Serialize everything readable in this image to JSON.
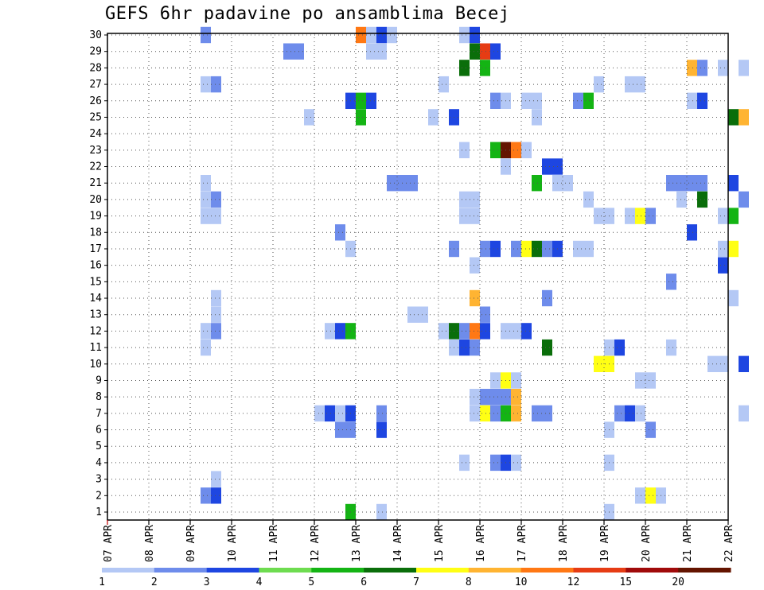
{
  "chart_data": {
    "type": "heatmap",
    "title": "GEFS 6hr padavine po ansamblima Becej",
    "xlabel": "",
    "ylabel": "",
    "x_ticks": [
      "07 APR",
      "08 APR",
      "09 APR",
      "10 APR",
      "11 APR",
      "12 APR",
      "13 APR",
      "14 APR",
      "15 APR",
      "16 APR",
      "17 APR",
      "18 APR",
      "19 APR",
      "20 APR",
      "21 APR",
      "22 APR"
    ],
    "y_ticks": [
      "1",
      "2",
      "3",
      "4",
      "5",
      "6",
      "7",
      "8",
      "9",
      "10",
      "11",
      "12",
      "13",
      "14",
      "15",
      "16",
      "17",
      "18",
      "19",
      "20",
      "21",
      "22",
      "23",
      "24",
      "25",
      "26",
      "27",
      "28",
      "29",
      "30"
    ],
    "x_unit": "6-hour step (4 steps per day, step 0 = 07 APR 00Z)",
    "colorbar": {
      "labels": [
        "1",
        "2",
        "3",
        "4",
        "5",
        "6",
        "7",
        "8",
        "10",
        "12",
        "15",
        "20"
      ],
      "colors": [
        "#b4c8f5",
        "#6e8ceb",
        "#1e46e1",
        "#6edc50",
        "#14b414",
        "#0a6e0a",
        "#ffff14",
        "#ffb432",
        "#ff7814",
        "#e63c14",
        "#a00a0a",
        "#641400"
      ]
    },
    "cells": [
      {
        "member": 30,
        "step": 9,
        "value": 2
      },
      {
        "member": 30,
        "step": 24,
        "value": 10
      },
      {
        "member": 30,
        "step": 25,
        "value": 1
      },
      {
        "member": 30,
        "step": 26,
        "value": 3
      },
      {
        "member": 30,
        "step": 27,
        "value": 1
      },
      {
        "member": 30,
        "step": 34,
        "value": 1
      },
      {
        "member": 30,
        "step": 35,
        "value": 3
      },
      {
        "member": 29,
        "step": 17,
        "value": 2
      },
      {
        "member": 29,
        "step": 18,
        "value": 2
      },
      {
        "member": 29,
        "step": 25,
        "value": 1
      },
      {
        "member": 29,
        "step": 26,
        "value": 1
      },
      {
        "member": 29,
        "step": 35,
        "value": 6
      },
      {
        "member": 29,
        "step": 36,
        "value": 12
      },
      {
        "member": 29,
        "step": 37,
        "value": 3
      },
      {
        "member": 28,
        "step": 34,
        "value": 6
      },
      {
        "member": 28,
        "step": 36,
        "value": 5
      },
      {
        "member": 28,
        "step": 56,
        "value": 8
      },
      {
        "member": 28,
        "step": 57,
        "value": 2
      },
      {
        "member": 28,
        "step": 59,
        "value": 1
      },
      {
        "member": 28,
        "step": 61,
        "value": 1
      },
      {
        "member": 27,
        "step": 9,
        "value": 1
      },
      {
        "member": 27,
        "step": 10,
        "value": 2
      },
      {
        "member": 27,
        "step": 32,
        "value": 1
      },
      {
        "member": 27,
        "step": 47,
        "value": 1
      },
      {
        "member": 27,
        "step": 50,
        "value": 1
      },
      {
        "member": 27,
        "step": 51,
        "value": 1
      },
      {
        "member": 26,
        "step": 23,
        "value": 3
      },
      {
        "member": 26,
        "step": 24,
        "value": 5
      },
      {
        "member": 26,
        "step": 25,
        "value": 3
      },
      {
        "member": 26,
        "step": 37,
        "value": 2
      },
      {
        "member": 26,
        "step": 38,
        "value": 1
      },
      {
        "member": 26,
        "step": 40,
        "value": 1
      },
      {
        "member": 26,
        "step": 41,
        "value": 1
      },
      {
        "member": 26,
        "step": 45,
        "value": 2
      },
      {
        "member": 26,
        "step": 46,
        "value": 5
      },
      {
        "member": 26,
        "step": 56,
        "value": 1
      },
      {
        "member": 26,
        "step": 57,
        "value": 3
      },
      {
        "member": 25,
        "step": 19,
        "value": 1
      },
      {
        "member": 25,
        "step": 24,
        "value": 5
      },
      {
        "member": 25,
        "step": 31,
        "value": 1
      },
      {
        "member": 25,
        "step": 33,
        "value": 3
      },
      {
        "member": 25,
        "step": 41,
        "value": 1
      },
      {
        "member": 25,
        "step": 60,
        "value": 6
      },
      {
        "member": 25,
        "step": 61,
        "value": 8
      },
      {
        "member": 23,
        "step": 34,
        "value": 1
      },
      {
        "member": 23,
        "step": 37,
        "value": 5
      },
      {
        "member": 23,
        "step": 38,
        "value": 20
      },
      {
        "member": 23,
        "step": 39,
        "value": 10
      },
      {
        "member": 23,
        "step": 40,
        "value": 1
      },
      {
        "member": 22,
        "step": 38,
        "value": 1
      },
      {
        "member": 22,
        "step": 42,
        "value": 3
      },
      {
        "member": 22,
        "step": 43,
        "value": 3
      },
      {
        "member": 21,
        "step": 9,
        "value": 1
      },
      {
        "member": 21,
        "step": 27,
        "value": 2
      },
      {
        "member": 21,
        "step": 28,
        "value": 2
      },
      {
        "member": 21,
        "step": 29,
        "value": 2
      },
      {
        "member": 21,
        "step": 41,
        "value": 5
      },
      {
        "member": 21,
        "step": 43,
        "value": 1
      },
      {
        "member": 21,
        "step": 44,
        "value": 1
      },
      {
        "member": 21,
        "step": 54,
        "value": 2
      },
      {
        "member": 21,
        "step": 55,
        "value": 2
      },
      {
        "member": 21,
        "step": 56,
        "value": 2
      },
      {
        "member": 21,
        "step": 57,
        "value": 2
      },
      {
        "member": 21,
        "step": 60,
        "value": 3
      },
      {
        "member": 20,
        "step": 9,
        "value": 1
      },
      {
        "member": 20,
        "step": 10,
        "value": 2
      },
      {
        "member": 20,
        "step": 34,
        "value": 1
      },
      {
        "member": 20,
        "step": 35,
        "value": 1
      },
      {
        "member": 20,
        "step": 46,
        "value": 1
      },
      {
        "member": 20,
        "step": 55,
        "value": 1
      },
      {
        "member": 20,
        "step": 57,
        "value": 6
      },
      {
        "member": 20,
        "step": 61,
        "value": 2
      },
      {
        "member": 19,
        "step": 9,
        "value": 1
      },
      {
        "member": 19,
        "step": 10,
        "value": 1
      },
      {
        "member": 19,
        "step": 34,
        "value": 1
      },
      {
        "member": 19,
        "step": 35,
        "value": 1
      },
      {
        "member": 19,
        "step": 47,
        "value": 1
      },
      {
        "member": 19,
        "step": 48,
        "value": 1
      },
      {
        "member": 19,
        "step": 50,
        "value": 1
      },
      {
        "member": 19,
        "step": 51,
        "value": 7
      },
      {
        "member": 19,
        "step": 52,
        "value": 2
      },
      {
        "member": 19,
        "step": 59,
        "value": 1
      },
      {
        "member": 19,
        "step": 60,
        "value": 5
      },
      {
        "member": 18,
        "step": 22,
        "value": 2
      },
      {
        "member": 18,
        "step": 56,
        "value": 3
      },
      {
        "member": 17,
        "step": 23,
        "value": 1
      },
      {
        "member": 17,
        "step": 33,
        "value": 2
      },
      {
        "member": 17,
        "step": 36,
        "value": 2
      },
      {
        "member": 17,
        "step": 37,
        "value": 3
      },
      {
        "member": 17,
        "step": 39,
        "value": 2
      },
      {
        "member": 17,
        "step": 40,
        "value": 7
      },
      {
        "member": 17,
        "step": 41,
        "value": 6
      },
      {
        "member": 17,
        "step": 42,
        "value": 2
      },
      {
        "member": 17,
        "step": 43,
        "value": 3
      },
      {
        "member": 17,
        "step": 45,
        "value": 1
      },
      {
        "member": 17,
        "step": 46,
        "value": 1
      },
      {
        "member": 17,
        "step": 59,
        "value": 1
      },
      {
        "member": 17,
        "step": 60,
        "value": 7
      },
      {
        "member": 16,
        "step": 35,
        "value": 1
      },
      {
        "member": 16,
        "step": 59,
        "value": 3
      },
      {
        "member": 15,
        "step": 54,
        "value": 2
      },
      {
        "member": 14,
        "step": 10,
        "value": 1
      },
      {
        "member": 14,
        "step": 35,
        "value": 8
      },
      {
        "member": 14,
        "step": 42,
        "value": 2
      },
      {
        "member": 14,
        "step": 60,
        "value": 1
      },
      {
        "member": 13,
        "step": 10,
        "value": 1
      },
      {
        "member": 13,
        "step": 29,
        "value": 1
      },
      {
        "member": 13,
        "step": 30,
        "value": 1
      },
      {
        "member": 13,
        "step": 36,
        "value": 2
      },
      {
        "member": 12,
        "step": 9,
        "value": 1
      },
      {
        "member": 12,
        "step": 10,
        "value": 2
      },
      {
        "member": 12,
        "step": 21,
        "value": 1
      },
      {
        "member": 12,
        "step": 22,
        "value": 3
      },
      {
        "member": 12,
        "step": 23,
        "value": 5
      },
      {
        "member": 12,
        "step": 32,
        "value": 1
      },
      {
        "member": 12,
        "step": 33,
        "value": 6
      },
      {
        "member": 12,
        "step": 34,
        "value": 2
      },
      {
        "member": 12,
        "step": 35,
        "value": 10
      },
      {
        "member": 12,
        "step": 36,
        "value": 3
      },
      {
        "member": 12,
        "step": 38,
        "value": 1
      },
      {
        "member": 12,
        "step": 39,
        "value": 1
      },
      {
        "member": 12,
        "step": 40,
        "value": 3
      },
      {
        "member": 11,
        "step": 9,
        "value": 1
      },
      {
        "member": 11,
        "step": 33,
        "value": 1
      },
      {
        "member": 11,
        "step": 34,
        "value": 3
      },
      {
        "member": 11,
        "step": 35,
        "value": 2
      },
      {
        "member": 11,
        "step": 42,
        "value": 6
      },
      {
        "member": 11,
        "step": 48,
        "value": 1
      },
      {
        "member": 11,
        "step": 49,
        "value": 3
      },
      {
        "member": 11,
        "step": 54,
        "value": 1
      },
      {
        "member": 10,
        "step": 47,
        "value": 7
      },
      {
        "member": 10,
        "step": 48,
        "value": 7
      },
      {
        "member": 10,
        "step": 58,
        "value": 1
      },
      {
        "member": 10,
        "step": 59,
        "value": 1
      },
      {
        "member": 10,
        "step": 61,
        "value": 3
      },
      {
        "member": 9,
        "step": 37,
        "value": 1
      },
      {
        "member": 9,
        "step": 38,
        "value": 7
      },
      {
        "member": 9,
        "step": 39,
        "value": 1
      },
      {
        "member": 9,
        "step": 51,
        "value": 1
      },
      {
        "member": 9,
        "step": 52,
        "value": 1
      },
      {
        "member": 8,
        "step": 35,
        "value": 1
      },
      {
        "member": 8,
        "step": 36,
        "value": 2
      },
      {
        "member": 8,
        "step": 37,
        "value": 2
      },
      {
        "member": 8,
        "step": 38,
        "value": 2
      },
      {
        "member": 8,
        "step": 39,
        "value": 8
      },
      {
        "member": 7,
        "step": 20,
        "value": 1
      },
      {
        "member": 7,
        "step": 21,
        "value": 3
      },
      {
        "member": 7,
        "step": 22,
        "value": 1
      },
      {
        "member": 7,
        "step": 23,
        "value": 3
      },
      {
        "member": 7,
        "step": 26,
        "value": 2
      },
      {
        "member": 7,
        "step": 35,
        "value": 1
      },
      {
        "member": 7,
        "step": 36,
        "value": 7
      },
      {
        "member": 7,
        "step": 37,
        "value": 2
      },
      {
        "member": 7,
        "step": 38,
        "value": 5
      },
      {
        "member": 7,
        "step": 39,
        "value": 8
      },
      {
        "member": 7,
        "step": 41,
        "value": 2
      },
      {
        "member": 7,
        "step": 42,
        "value": 2
      },
      {
        "member": 7,
        "step": 49,
        "value": 2
      },
      {
        "member": 7,
        "step": 50,
        "value": 3
      },
      {
        "member": 7,
        "step": 51,
        "value": 1
      },
      {
        "member": 7,
        "step": 61,
        "value": 1
      },
      {
        "member": 6,
        "step": 22,
        "value": 2
      },
      {
        "member": 6,
        "step": 23,
        "value": 2
      },
      {
        "member": 6,
        "step": 26,
        "value": 3
      },
      {
        "member": 6,
        "step": 48,
        "value": 1
      },
      {
        "member": 6,
        "step": 52,
        "value": 2
      },
      {
        "member": 4,
        "step": 34,
        "value": 1
      },
      {
        "member": 4,
        "step": 37,
        "value": 2
      },
      {
        "member": 4,
        "step": 38,
        "value": 3
      },
      {
        "member": 4,
        "step": 39,
        "value": 1
      },
      {
        "member": 4,
        "step": 48,
        "value": 1
      },
      {
        "member": 3,
        "step": 10,
        "value": 1
      },
      {
        "member": 2,
        "step": 9,
        "value": 2
      },
      {
        "member": 2,
        "step": 10,
        "value": 3
      },
      {
        "member": 2,
        "step": 51,
        "value": 1
      },
      {
        "member": 2,
        "step": 52,
        "value": 7
      },
      {
        "member": 2,
        "step": 53,
        "value": 1
      },
      {
        "member": 1,
        "step": 23,
        "value": 5
      },
      {
        "member": 1,
        "step": 26,
        "value": 1
      },
      {
        "member": 1,
        "step": 48,
        "value": 1
      }
    ]
  }
}
